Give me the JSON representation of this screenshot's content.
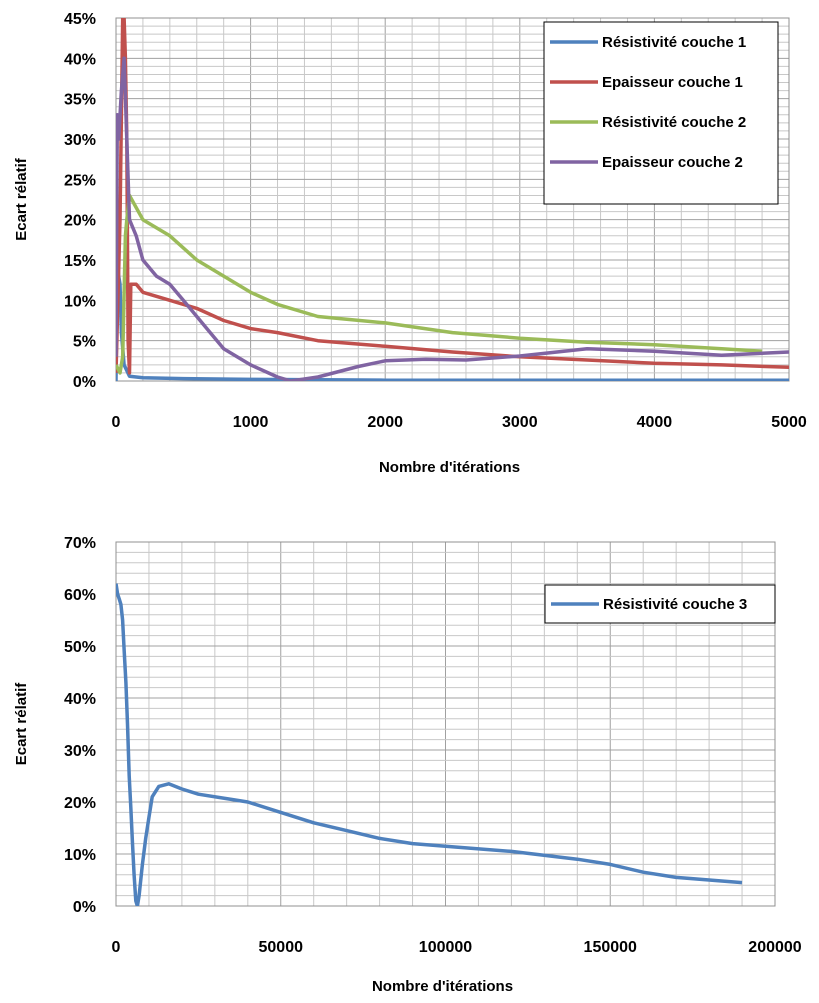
{
  "chart_data": [
    {
      "type": "line",
      "title": "",
      "xlabel": "Nombre d'itérations",
      "ylabel": "Ecart rélatif",
      "xlim": [
        0,
        5000
      ],
      "ylim": [
        0,
        0.45
      ],
      "x_ticks": [
        "0",
        "1000",
        "2000",
        "3000",
        "4000",
        "5000"
      ],
      "y_ticks": [
        "0%",
        "5%",
        "10%",
        "15%",
        "20%",
        "25%",
        "30%",
        "35%",
        "40%",
        "45%"
      ],
      "grid": true,
      "legend_position": "top-right",
      "series": [
        {
          "name": "Résistivité couche 1",
          "color": "#4f81bd",
          "points": [
            [
              0,
              0.0
            ],
            [
              10,
              0.15
            ],
            [
              20,
              0.13
            ],
            [
              30,
              0.12
            ],
            [
              40,
              0.06
            ],
            [
              60,
              0.02
            ],
            [
              100,
              0.006
            ],
            [
              200,
              0.004
            ],
            [
              500,
              0.003
            ],
            [
              1000,
              0.002
            ],
            [
              2000,
              0.001
            ],
            [
              3000,
              0.001
            ],
            [
              5000,
              0.001
            ]
          ]
        },
        {
          "name": "Epaisseur couche 1",
          "color": "#c0504d",
          "points": [
            [
              0,
              0.01
            ],
            [
              30,
              0.2
            ],
            [
              50,
              0.45
            ],
            [
              60,
              0.45
            ],
            [
              70,
              0.4
            ],
            [
              80,
              0.3
            ],
            [
              90,
              0.05
            ],
            [
              100,
              0.01
            ],
            [
              110,
              0.12
            ],
            [
              150,
              0.12
            ],
            [
              200,
              0.11
            ],
            [
              400,
              0.1
            ],
            [
              600,
              0.09
            ],
            [
              800,
              0.075
            ],
            [
              1000,
              0.065
            ],
            [
              1200,
              0.06
            ],
            [
              1500,
              0.05
            ],
            [
              2000,
              0.043
            ],
            [
              2500,
              0.036
            ],
            [
              3000,
              0.03
            ],
            [
              3500,
              0.026
            ],
            [
              4000,
              0.022
            ],
            [
              4500,
              0.02
            ],
            [
              5000,
              0.017
            ]
          ]
        },
        {
          "name": "Résistivité couche 2",
          "color": "#9bbb59",
          "points": [
            [
              0,
              0.02
            ],
            [
              30,
              0.01
            ],
            [
              50,
              0.03
            ],
            [
              70,
              0.18
            ],
            [
              80,
              0.2
            ],
            [
              100,
              0.23
            ],
            [
              150,
              0.215
            ],
            [
              200,
              0.2
            ],
            [
              400,
              0.18
            ],
            [
              600,
              0.15
            ],
            [
              800,
              0.13
            ],
            [
              1000,
              0.11
            ],
            [
              1200,
              0.095
            ],
            [
              1500,
              0.08
            ],
            [
              2000,
              0.072
            ],
            [
              2500,
              0.06
            ],
            [
              3000,
              0.053
            ],
            [
              3500,
              0.048
            ],
            [
              4000,
              0.045
            ],
            [
              4500,
              0.04
            ],
            [
              4800,
              0.037
            ]
          ]
        },
        {
          "name": "Epaisseur couche 2",
          "color": "#8064a2",
          "points": [
            [
              0,
              0.03
            ],
            [
              10,
              0.33
            ],
            [
              20,
              0.3
            ],
            [
              40,
              0.36
            ],
            [
              60,
              0.4
            ],
            [
              80,
              0.3
            ],
            [
              100,
              0.2
            ],
            [
              150,
              0.18
            ],
            [
              200,
              0.15
            ],
            [
              250,
              0.14
            ],
            [
              300,
              0.13
            ],
            [
              400,
              0.12
            ],
            [
              500,
              0.1
            ],
            [
              600,
              0.08
            ],
            [
              700,
              0.06
            ],
            [
              800,
              0.04
            ],
            [
              1000,
              0.02
            ],
            [
              1200,
              0.005
            ],
            [
              1300,
              0.0
            ],
            [
              1500,
              0.005
            ],
            [
              1800,
              0.018
            ],
            [
              2000,
              0.025
            ],
            [
              2300,
              0.027
            ],
            [
              2600,
              0.026
            ],
            [
              3000,
              0.031
            ],
            [
              3500,
              0.04
            ],
            [
              4000,
              0.037
            ],
            [
              4500,
              0.032
            ],
            [
              5000,
              0.036
            ]
          ]
        }
      ]
    },
    {
      "type": "line",
      "title": "",
      "xlabel": "Nombre d'itérations",
      "ylabel": "Ecart rélatif",
      "xlim": [
        0,
        200000
      ],
      "ylim": [
        0,
        0.7
      ],
      "x_ticks": [
        "0",
        "50000",
        "100000",
        "150000",
        "200000"
      ],
      "y_ticks": [
        "0%",
        "10%",
        "20%",
        "30%",
        "40%",
        "50%",
        "60%",
        "70%"
      ],
      "grid": true,
      "legend_position": "top-right",
      "series": [
        {
          "name": "Résistivité couche 3",
          "color": "#4f81bd",
          "points": [
            [
              0,
              0.62
            ],
            [
              500,
              0.6
            ],
            [
              1000,
              0.59
            ],
            [
              1500,
              0.58
            ],
            [
              2000,
              0.55
            ],
            [
              2500,
              0.49
            ],
            [
              3000,
              0.43
            ],
            [
              3500,
              0.35
            ],
            [
              4000,
              0.25
            ],
            [
              4500,
              0.19
            ],
            [
              5000,
              0.12
            ],
            [
              5500,
              0.06
            ],
            [
              6000,
              0.01
            ],
            [
              6500,
              0.0
            ],
            [
              7000,
              0.02
            ],
            [
              8000,
              0.08
            ],
            [
              9000,
              0.13
            ],
            [
              10000,
              0.17
            ],
            [
              11000,
              0.21
            ],
            [
              13000,
              0.23
            ],
            [
              16000,
              0.235
            ],
            [
              20000,
              0.225
            ],
            [
              25000,
              0.215
            ],
            [
              35000,
              0.205
            ],
            [
              40000,
              0.2
            ],
            [
              50000,
              0.18
            ],
            [
              60000,
              0.16
            ],
            [
              70000,
              0.145
            ],
            [
              80000,
              0.13
            ],
            [
              90000,
              0.12
            ],
            [
              100000,
              0.115
            ],
            [
              120000,
              0.105
            ],
            [
              140000,
              0.09
            ],
            [
              150000,
              0.08
            ],
            [
              160000,
              0.065
            ],
            [
              170000,
              0.055
            ],
            [
              180000,
              0.05
            ],
            [
              190000,
              0.045
            ]
          ]
        }
      ]
    }
  ]
}
